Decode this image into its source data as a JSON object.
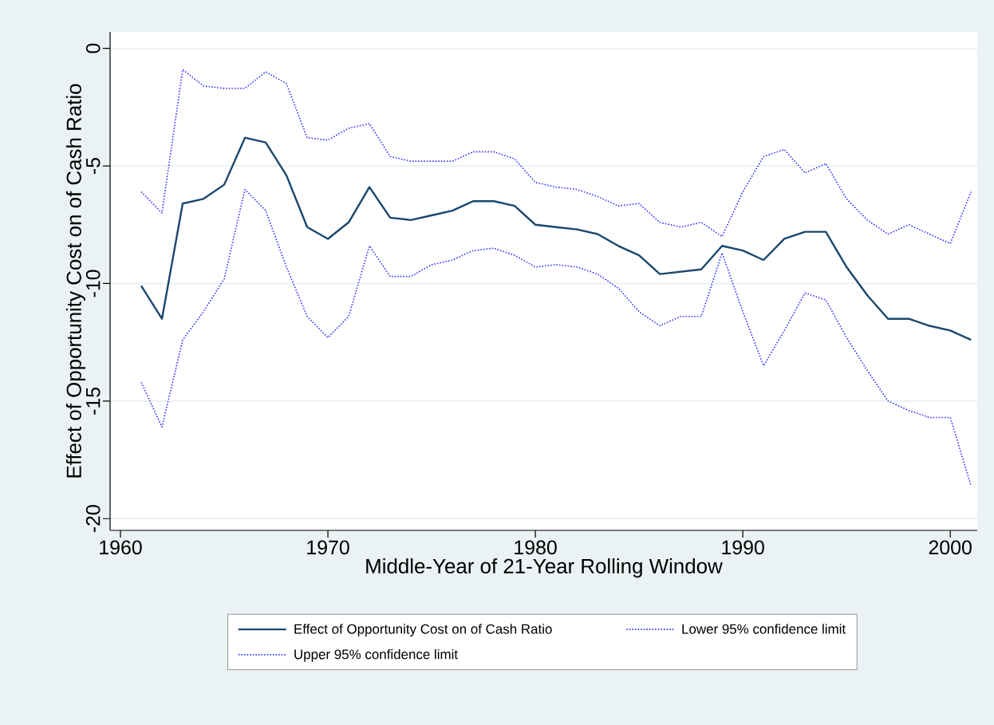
{
  "chart_data": {
    "type": "line",
    "xlabel": "Middle-Year of 21-Year Rolling Window",
    "ylabel": "Effect of Opportunity Cost on of Cash Ratio",
    "x": [
      1961,
      1962,
      1963,
      1964,
      1965,
      1966,
      1967,
      1968,
      1969,
      1970,
      1971,
      1972,
      1973,
      1974,
      1975,
      1976,
      1977,
      1978,
      1979,
      1980,
      1981,
      1982,
      1983,
      1984,
      1985,
      1986,
      1987,
      1988,
      1989,
      1990,
      1991,
      1992,
      1993,
      1994,
      1995,
      1996,
      1997,
      1998,
      1999,
      2000,
      2001
    ],
    "series": [
      {
        "name": "Effect of Opportunity Cost on of Cash Ratio",
        "color": "#1a476f",
        "line_style": "solid",
        "values": [
          -10.1,
          -11.5,
          -6.6,
          -6.4,
          -5.8,
          -3.8,
          -4.0,
          -5.4,
          -7.6,
          -8.1,
          -7.4,
          -5.9,
          -7.2,
          -7.3,
          -7.1,
          -6.9,
          -6.5,
          -6.5,
          -6.7,
          -7.5,
          -7.6,
          -7.7,
          -7.9,
          -8.4,
          -8.8,
          -9.6,
          -9.5,
          -9.4,
          -8.4,
          -8.6,
          -9.0,
          -8.1,
          -7.8,
          -7.8,
          -9.3,
          -10.5,
          -11.5,
          -11.5,
          -11.8,
          -12.0,
          -12.4
        ]
      },
      {
        "name": "Lower 95% confidence limit",
        "color": "#3333ff",
        "line_style": "dotted",
        "values": [
          -14.2,
          -16.1,
          -12.4,
          -11.2,
          -9.8,
          -6.0,
          -6.9,
          -9.3,
          -11.4,
          -12.3,
          -11.4,
          -8.4,
          -9.7,
          -9.7,
          -9.2,
          -9.0,
          -8.6,
          -8.5,
          -8.8,
          -9.3,
          -9.2,
          -9.3,
          -9.6,
          -10.2,
          -11.2,
          -11.8,
          -11.4,
          -11.4,
          -8.7,
          -11.2,
          -13.5,
          -12.0,
          -10.4,
          -10.7,
          -12.3,
          -13.7,
          -15.0,
          -15.4,
          -15.7,
          -15.7,
          -18.6
        ]
      },
      {
        "name": "Upper 95% confidence limit",
        "color": "#3333ff",
        "line_style": "dotted",
        "values": [
          -6.1,
          -7.0,
          -0.9,
          -1.6,
          -1.7,
          -1.7,
          -1.0,
          -1.5,
          -3.8,
          -3.9,
          -3.4,
          -3.2,
          -4.6,
          -4.8,
          -4.8,
          -4.8,
          -4.4,
          -4.4,
          -4.7,
          -5.7,
          -5.9,
          -6.0,
          -6.3,
          -6.7,
          -6.6,
          -7.4,
          -7.6,
          -7.4,
          -8.0,
          -6.1,
          -4.6,
          -4.3,
          -5.3,
          -4.9,
          -6.4,
          -7.3,
          -7.9,
          -7.5,
          -7.9,
          -8.3,
          -6.1
        ]
      }
    ],
    "xlim": [
      1959.5,
      2001.3
    ],
    "ylim": [
      -20.5,
      0.7
    ],
    "xticks": [
      1960,
      1970,
      1980,
      1990,
      2000
    ],
    "yticks": [
      0,
      -5,
      -10,
      -15,
      -20
    ],
    "grid": "y",
    "legend": "bottom"
  }
}
